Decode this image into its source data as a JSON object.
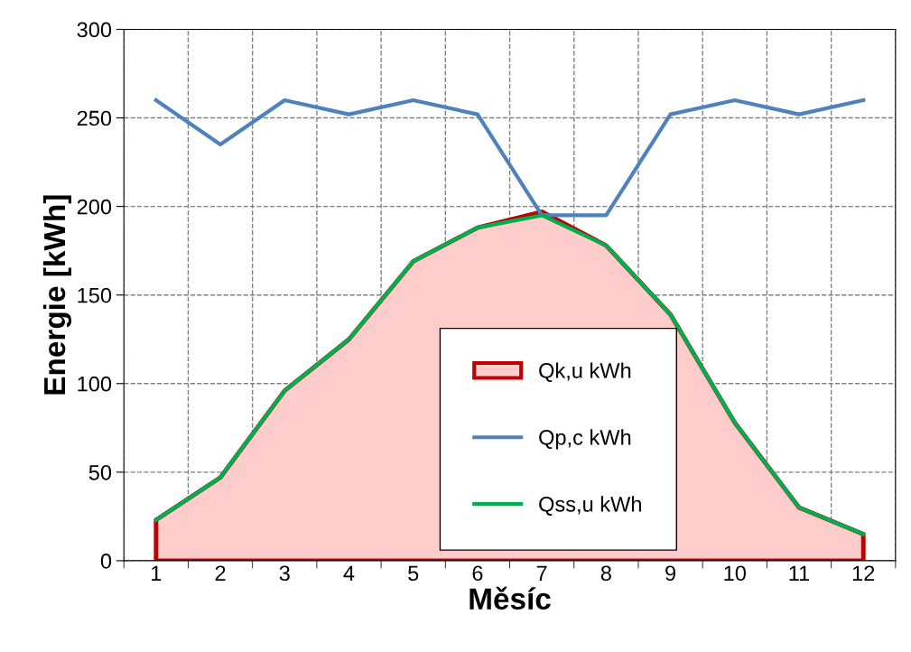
{
  "chart_data": {
    "type": "line",
    "xlabel": "Měsíc",
    "ylabel": "Energie [kWh]",
    "categories": [
      "1",
      "2",
      "3",
      "4",
      "5",
      "6",
      "7",
      "8",
      "9",
      "10",
      "11",
      "12"
    ],
    "series": [
      {
        "name": "Qk,u kWh",
        "type": "area",
        "color": "#c00000",
        "values": [
          23,
          47,
          96,
          125,
          169,
          188,
          197,
          178,
          139,
          78,
          30,
          15
        ]
      },
      {
        "name": "Qp,c kWh",
        "color": "#4f81bd",
        "values": [
          260,
          235,
          260,
          252,
          260,
          252,
          195,
          195,
          252,
          260,
          252,
          260
        ]
      },
      {
        "name": "Qss,u kWh",
        "color": "#00b050",
        "values": [
          23,
          47,
          96,
          125,
          169,
          188,
          195,
          178,
          139,
          78,
          30,
          15
        ]
      }
    ],
    "ylim": [
      0,
      300
    ],
    "yticks": [
      0,
      50,
      100,
      150,
      200,
      250,
      300
    ],
    "grid": true,
    "legend": "bottom right",
    "marker": "none",
    "line_style": "solid"
  }
}
